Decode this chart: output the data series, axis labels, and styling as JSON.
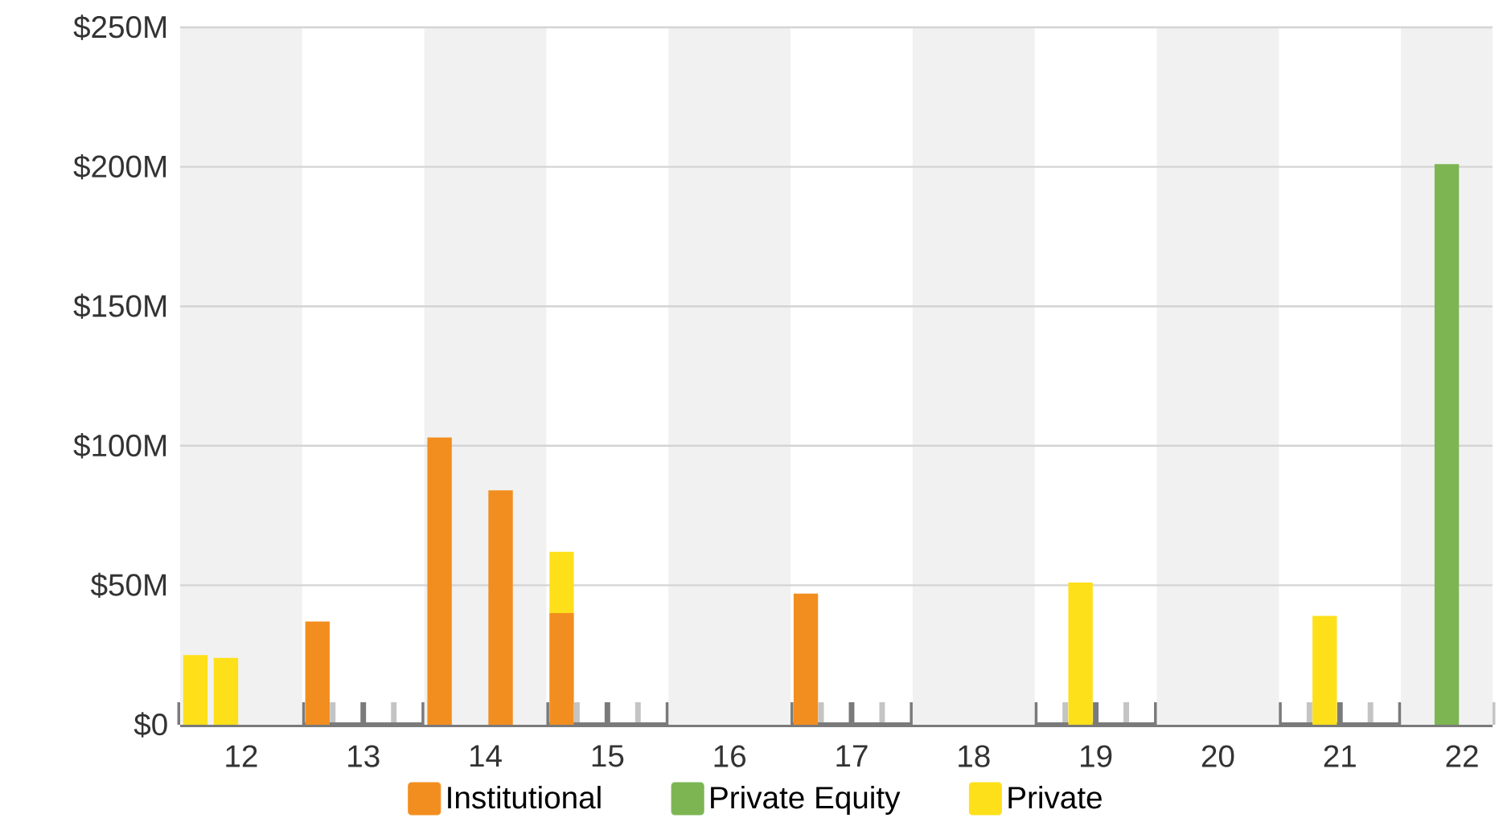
{
  "chart_data": {
    "type": "bar",
    "stacked": true,
    "x": [
      11.625,
      11.875,
      12.625,
      13.625,
      14.125,
      14.625,
      16.625,
      18.875,
      20.875,
      21.875
    ],
    "series": [
      {
        "name": "Institutional",
        "color": "#f28e1f",
        "values": [
          null,
          null,
          37,
          103,
          84,
          40,
          47,
          null,
          null,
          null
        ]
      },
      {
        "name": "Private Equity",
        "color": "#7db553",
        "values": [
          null,
          null,
          null,
          null,
          null,
          null,
          null,
          null,
          null,
          201
        ]
      },
      {
        "name": "Private",
        "color": "#fde01a",
        "values": [
          25,
          24,
          null,
          null,
          null,
          22,
          null,
          51,
          39,
          null
        ]
      }
    ],
    "xlim": [
      11.5,
      22.25
    ],
    "xticks": [
      {
        "value": 11.5,
        "label": null
      },
      12,
      {
        "value": 12.5,
        "label": null
      },
      13,
      {
        "value": 13.5,
        "label": null
      },
      14,
      {
        "value": 14.5,
        "label": null
      },
      15,
      {
        "value": 15.5,
        "label": null
      },
      16,
      {
        "value": 16.5,
        "label": null
      },
      17,
      {
        "value": 17.5,
        "label": null
      },
      18,
      {
        "value": 18.5,
        "label": null
      },
      19,
      {
        "value": 19.5,
        "label": null
      },
      20,
      {
        "value": 20.5,
        "label": null
      },
      21,
      {
        "value": 21.5,
        "label": null
      },
      22
    ],
    "ylim": [
      0,
      250
    ],
    "yticks": [
      {
        "value": 0,
        "label": "$0"
      },
      {
        "value": 50,
        "label": "$50M"
      },
      {
        "value": 100,
        "label": "$100M"
      },
      {
        "value": 150,
        "label": "$150M"
      },
      {
        "value": 200,
        "label": "$200M"
      },
      {
        "value": 250,
        "label": "$250M"
      }
    ],
    "bands": [
      {
        "axis": "x",
        "from": 11.5,
        "to": 12.5,
        "color": "#f1f1f1"
      },
      {
        "axis": "x",
        "from": 13.5,
        "to": 14.5,
        "color": "#f1f1f1"
      },
      {
        "axis": "x",
        "from": 15.5,
        "to": 16.5,
        "color": "#f1f1f1"
      },
      {
        "axis": "x",
        "from": 17.5,
        "to": 18.5,
        "color": "#f1f1f1"
      },
      {
        "axis": "x",
        "from": 19.5,
        "to": 20.5,
        "color": "#f1f1f1"
      },
      {
        "axis": "x",
        "from": 21.5,
        "to": 22.25,
        "color": "#f1f1f1"
      }
    ],
    "grid": "y",
    "legend": "bottom"
  }
}
